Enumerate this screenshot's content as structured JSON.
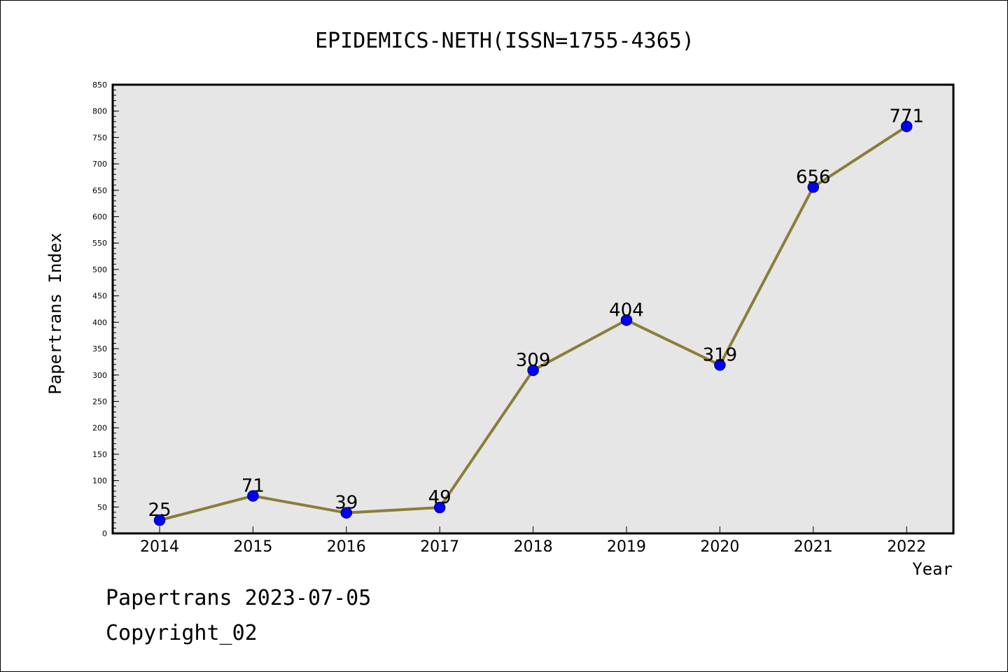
{
  "chart_data": {
    "type": "line",
    "title": "EPIDEMICS-NETH(ISSN=1755-4365)",
    "xlabel": "Year",
    "ylabel": "Papertrans Index",
    "categories": [
      "2014",
      "2015",
      "2016",
      "2017",
      "2018",
      "2019",
      "2020",
      "2021",
      "2022"
    ],
    "values": [
      25,
      71,
      39,
      49,
      309,
      404,
      319,
      656,
      771
    ],
    "data_labels": [
      "25",
      "71",
      "39",
      "49",
      "309",
      "404",
      "319",
      "656",
      "771"
    ],
    "ylim": [
      0,
      850
    ],
    "yticks": [
      0,
      50,
      100,
      150,
      200,
      250,
      300,
      350,
      400,
      450,
      500,
      550,
      600,
      650,
      700,
      750,
      800,
      850
    ],
    "ytick_labels": [
      "0",
      "50",
      "100",
      "150",
      "200",
      "250",
      "300",
      "350",
      "400",
      "450",
      "500",
      "550",
      "600",
      "650",
      "700",
      "750",
      "800",
      "850"
    ],
    "grid": false,
    "colors": {
      "plot_background": "#e6e6e6",
      "line": "#8b7d3a",
      "marker_fill": "#0000ff",
      "marker_edge": "#00008b"
    }
  },
  "footer": {
    "source": "Papertrans 2023-07-05",
    "copyright": "Copyright_02"
  }
}
